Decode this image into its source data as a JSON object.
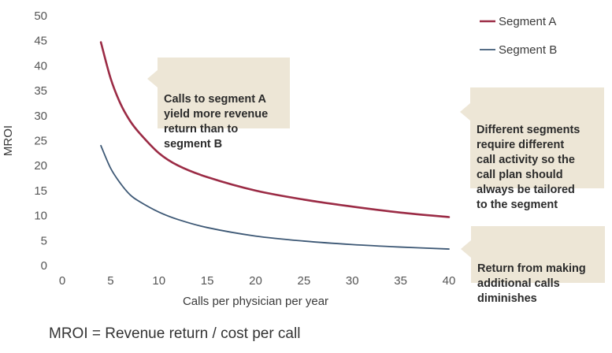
{
  "chart_data": {
    "type": "line",
    "xlabel": "Calls per physician per year",
    "ylabel": "MROI",
    "xlim": [
      0,
      40
    ],
    "ylim": [
      0,
      50
    ],
    "xticks": [
      0,
      5,
      10,
      15,
      20,
      25,
      30,
      35,
      40
    ],
    "yticks": [
      0,
      5,
      10,
      15,
      20,
      25,
      30,
      35,
      40,
      45,
      50
    ],
    "grid": false,
    "legend_position": "top-right",
    "series": [
      {
        "name": "Segment A",
        "color": "#9b2b45",
        "x": [
          4,
          5,
          6,
          7,
          8,
          10,
          12,
          15,
          20,
          25,
          30,
          35,
          40
        ],
        "y": [
          44.7,
          37.5,
          32.5,
          29,
          26.5,
          22.5,
          20,
          17.7,
          15,
          13.2,
          11.8,
          10.6,
          9.7
        ]
      },
      {
        "name": "Segment B",
        "color": "#3d5875",
        "x": [
          4,
          5,
          6,
          7,
          8,
          10,
          12,
          15,
          20,
          25,
          30,
          35,
          40
        ],
        "y": [
          24,
          19.5,
          16.5,
          14.2,
          12.8,
          10.7,
          9.2,
          7.6,
          5.9,
          4.9,
          4.2,
          3.7,
          3.3
        ]
      }
    ]
  },
  "callouts": {
    "segment_a": "Calls to segment A\nyield more revenue\nreturn than to\nsegment B",
    "different_segments": "Different segments\nrequire different\ncall activity so the\ncall plan should\nalways be tailored\nto the segment",
    "diminishing": "Return from making\nadditional calls\ndiminishes"
  },
  "footnote": "MROI = Revenue return / cost per call"
}
